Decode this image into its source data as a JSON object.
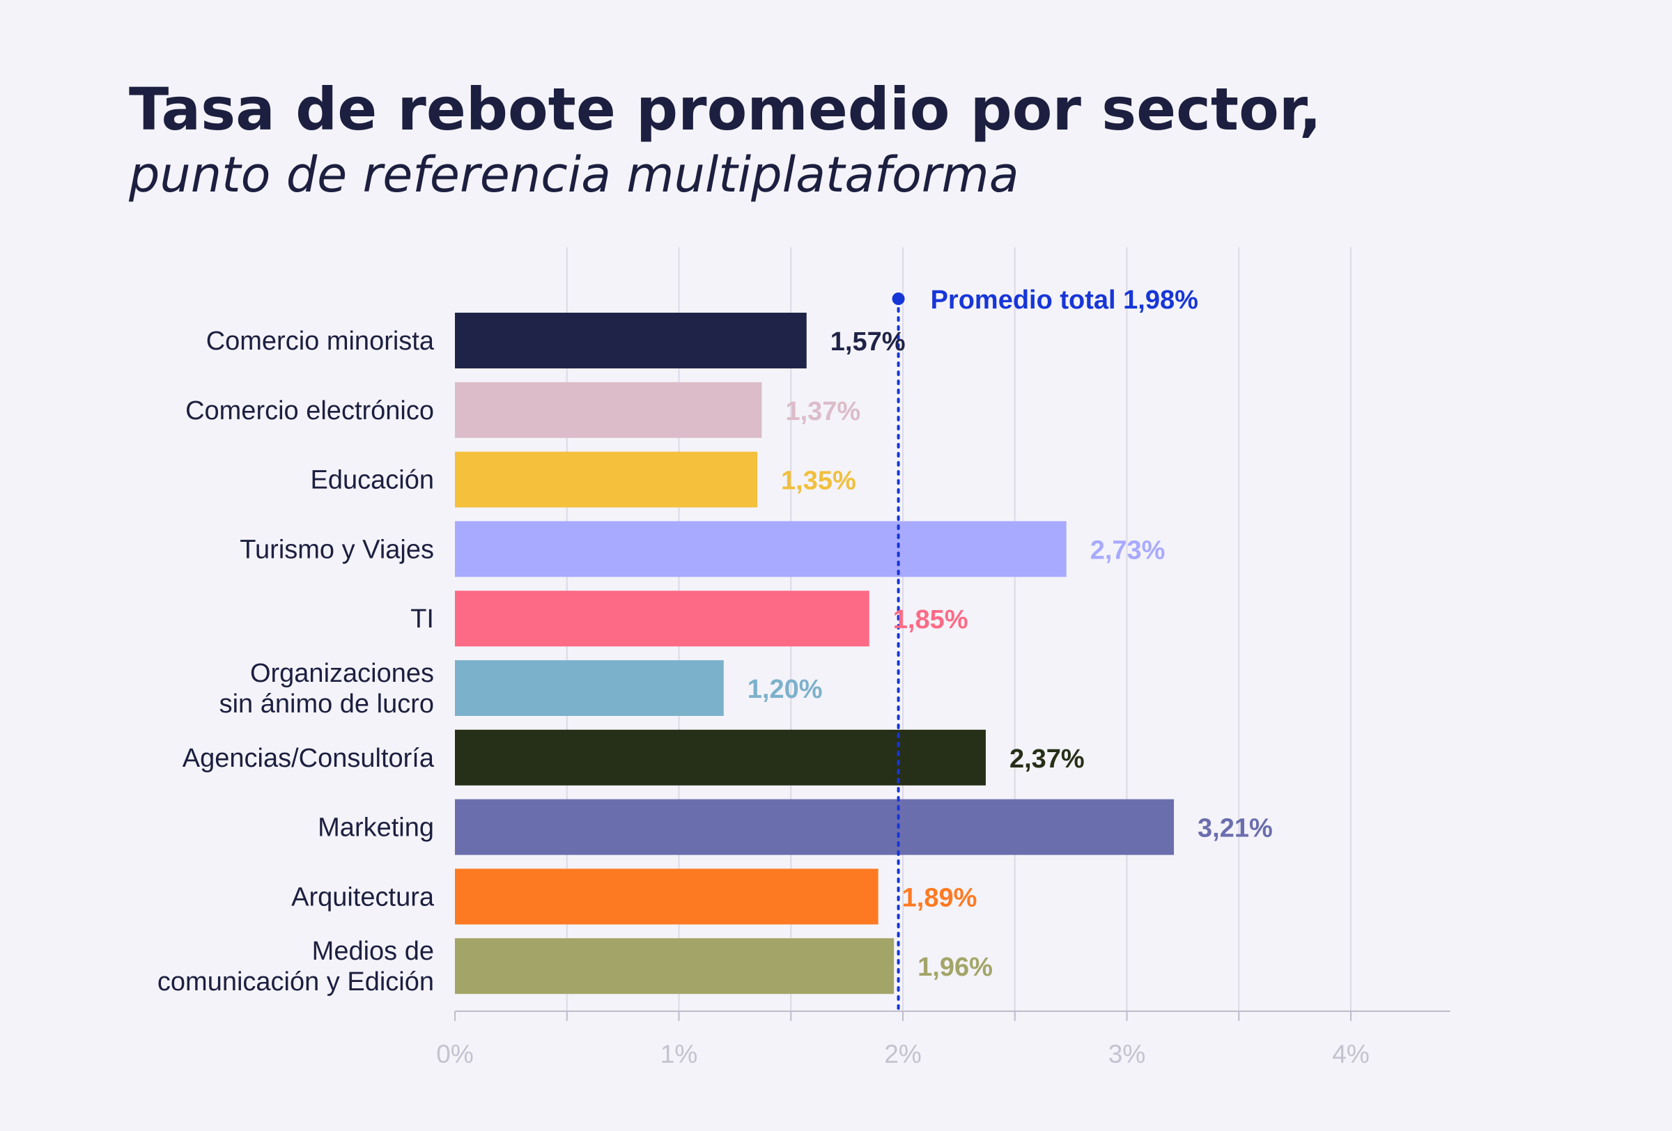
{
  "title": "Tasa de rebote promedio por sector,",
  "subtitle": "punto de referencia multiplataforma",
  "chart_data": {
    "type": "bar",
    "orientation": "horizontal",
    "categories": [
      [
        "Comercio minorista"
      ],
      [
        "Comercio electrónico"
      ],
      [
        "Educación"
      ],
      [
        "Turismo y Viajes"
      ],
      [
        "TI"
      ],
      [
        "Organizaciones",
        "sin ánimo de lucro"
      ],
      [
        "Agencias/Consultoría"
      ],
      [
        "Marketing"
      ],
      [
        "Arquitectura"
      ],
      [
        "Medios de",
        "comunicación y Edición"
      ]
    ],
    "values": [
      1.57,
      1.37,
      1.35,
      2.73,
      1.85,
      1.2,
      2.37,
      3.21,
      1.89,
      1.96
    ],
    "value_labels": [
      "1,57%",
      "1,37%",
      "1,35%",
      "2,73%",
      "1,85%",
      "1,20%",
      "2,37%",
      "3,21%",
      "1,89%",
      "1,96%"
    ],
    "colors": [
      "#1f2347",
      "#dcbcc9",
      "#f5c03c",
      "#a8aaff",
      "#fd6a86",
      "#7cb1cb",
      "#262f17",
      "#6b6ead",
      "#fd7a22",
      "#a3a568"
    ],
    "label_colors": [
      "#1f2347",
      "#dcbcc9",
      "#f0bf3d",
      "#a8aaff",
      "#fd6a86",
      "#7cb1cb",
      "#262f17",
      "#6b6ead",
      "#fd7a22",
      "#a3a568"
    ],
    "xlim": [
      0,
      4.35
    ],
    "xticks": [
      0,
      1,
      2,
      3,
      4
    ],
    "xtick_labels": [
      "0%",
      "1%",
      "2%",
      "3%",
      "4%"
    ],
    "grid": true,
    "reference_line": {
      "value": 1.98,
      "label": "Promedio total 1,98%",
      "color": "#1736d8",
      "style": "dotted"
    }
  }
}
